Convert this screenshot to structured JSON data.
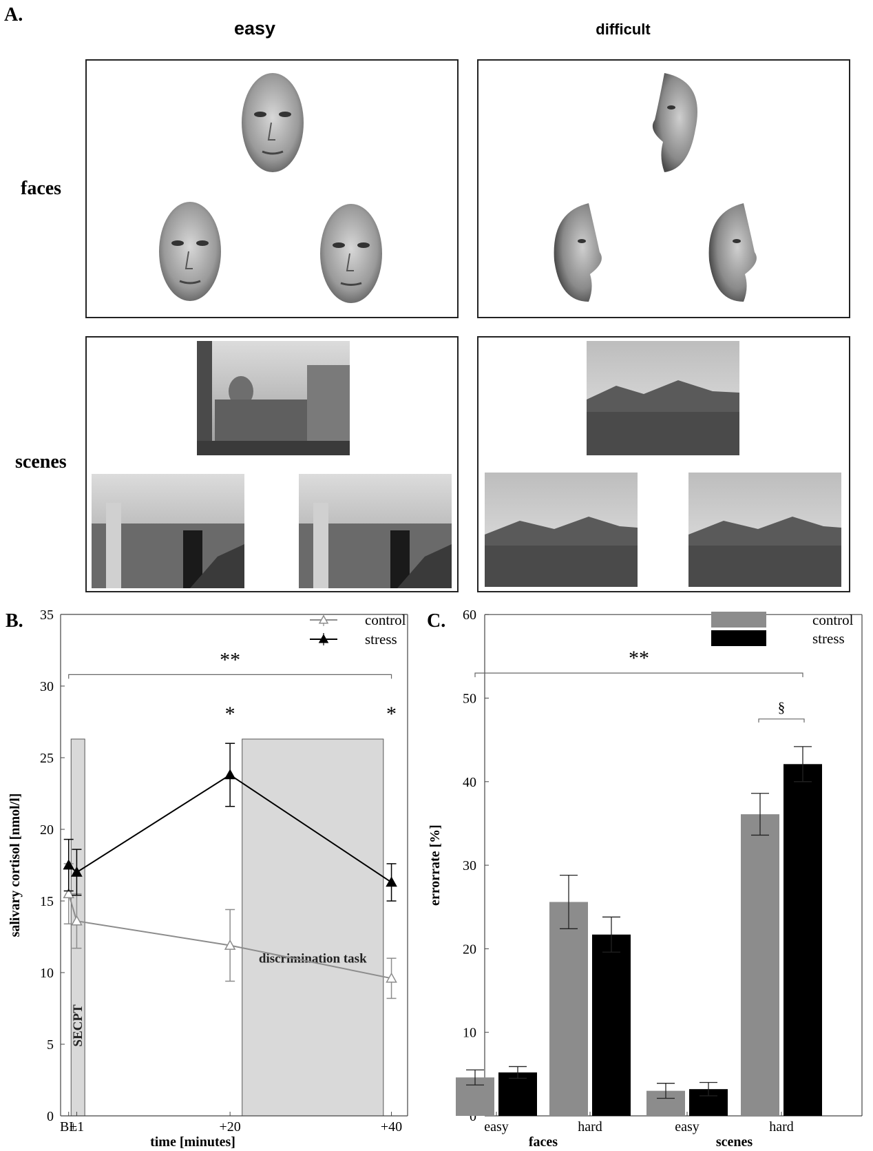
{
  "panel_a": {
    "letter": "A.",
    "col_easy": "easy",
    "col_difficult": "difficult",
    "row_faces": "faces",
    "row_scenes": "scenes"
  },
  "panel_b": {
    "letter": "B.",
    "legend": [
      "control",
      "stress"
    ],
    "sig_overall": "**",
    "sig_points": [
      "*",
      "*"
    ],
    "secpt_label": "SECPT",
    "task_label": "discrimination task"
  },
  "panel_c": {
    "letter": "C.",
    "legend": [
      "control",
      "stress"
    ],
    "sig_overall": "**",
    "sig_hard_scenes": "§",
    "group_labels": [
      "faces",
      "scenes"
    ]
  },
  "chart_data": [
    {
      "type": "line",
      "xlabel": "time [minutes]",
      "ylabel": "salivary cortisol [nmol/l]",
      "ylim": [
        0,
        35
      ],
      "yticks": [
        0,
        5,
        10,
        15,
        20,
        25,
        30,
        35
      ],
      "x": [
        0,
        1,
        20,
        40
      ],
      "xtick_labels": [
        "BL",
        "+1",
        "+20",
        "+40"
      ],
      "xlim": [
        -1,
        42
      ],
      "series": [
        {
          "name": "control",
          "color": "#8c8c8c",
          "marker": "open-triangle",
          "values": [
            15.5,
            13.6,
            11.9,
            9.6
          ],
          "errors": [
            2.1,
            1.9,
            2.5,
            1.4
          ]
        },
        {
          "name": "stress",
          "color": "#000000",
          "marker": "filled-triangle",
          "values": [
            17.5,
            17.0,
            23.8,
            16.3
          ],
          "errors": [
            1.8,
            1.6,
            2.2,
            1.3
          ]
        }
      ],
      "shaded_regions": [
        {
          "label": "SECPT",
          "x0": 0.3,
          "x1": 2.0,
          "y1": 26.3
        },
        {
          "label": "discrimination task",
          "x0": 21.5,
          "x1": 39.0,
          "y1": 26.3
        }
      ],
      "grid": false,
      "legend": "top-right"
    },
    {
      "type": "bar",
      "ylabel": "errorrate [%]",
      "ylim": [
        0,
        60
      ],
      "yticks": [
        0,
        10,
        20,
        30,
        40,
        50,
        60
      ],
      "categories": [
        "easy",
        "hard",
        "easy",
        "hard"
      ],
      "groups": [
        "faces",
        "faces",
        "scenes",
        "scenes"
      ],
      "series": [
        {
          "name": "control",
          "color": "#8c8c8c",
          "values": [
            4.6,
            25.6,
            3.0,
            36.1
          ],
          "errors": [
            0.9,
            3.2,
            0.9,
            2.5
          ]
        },
        {
          "name": "stress",
          "color": "#000000",
          "values": [
            5.2,
            21.7,
            3.2,
            42.1
          ],
          "errors": [
            0.7,
            2.1,
            0.8,
            2.1
          ]
        }
      ],
      "grid": false,
      "legend": "top-right"
    }
  ]
}
